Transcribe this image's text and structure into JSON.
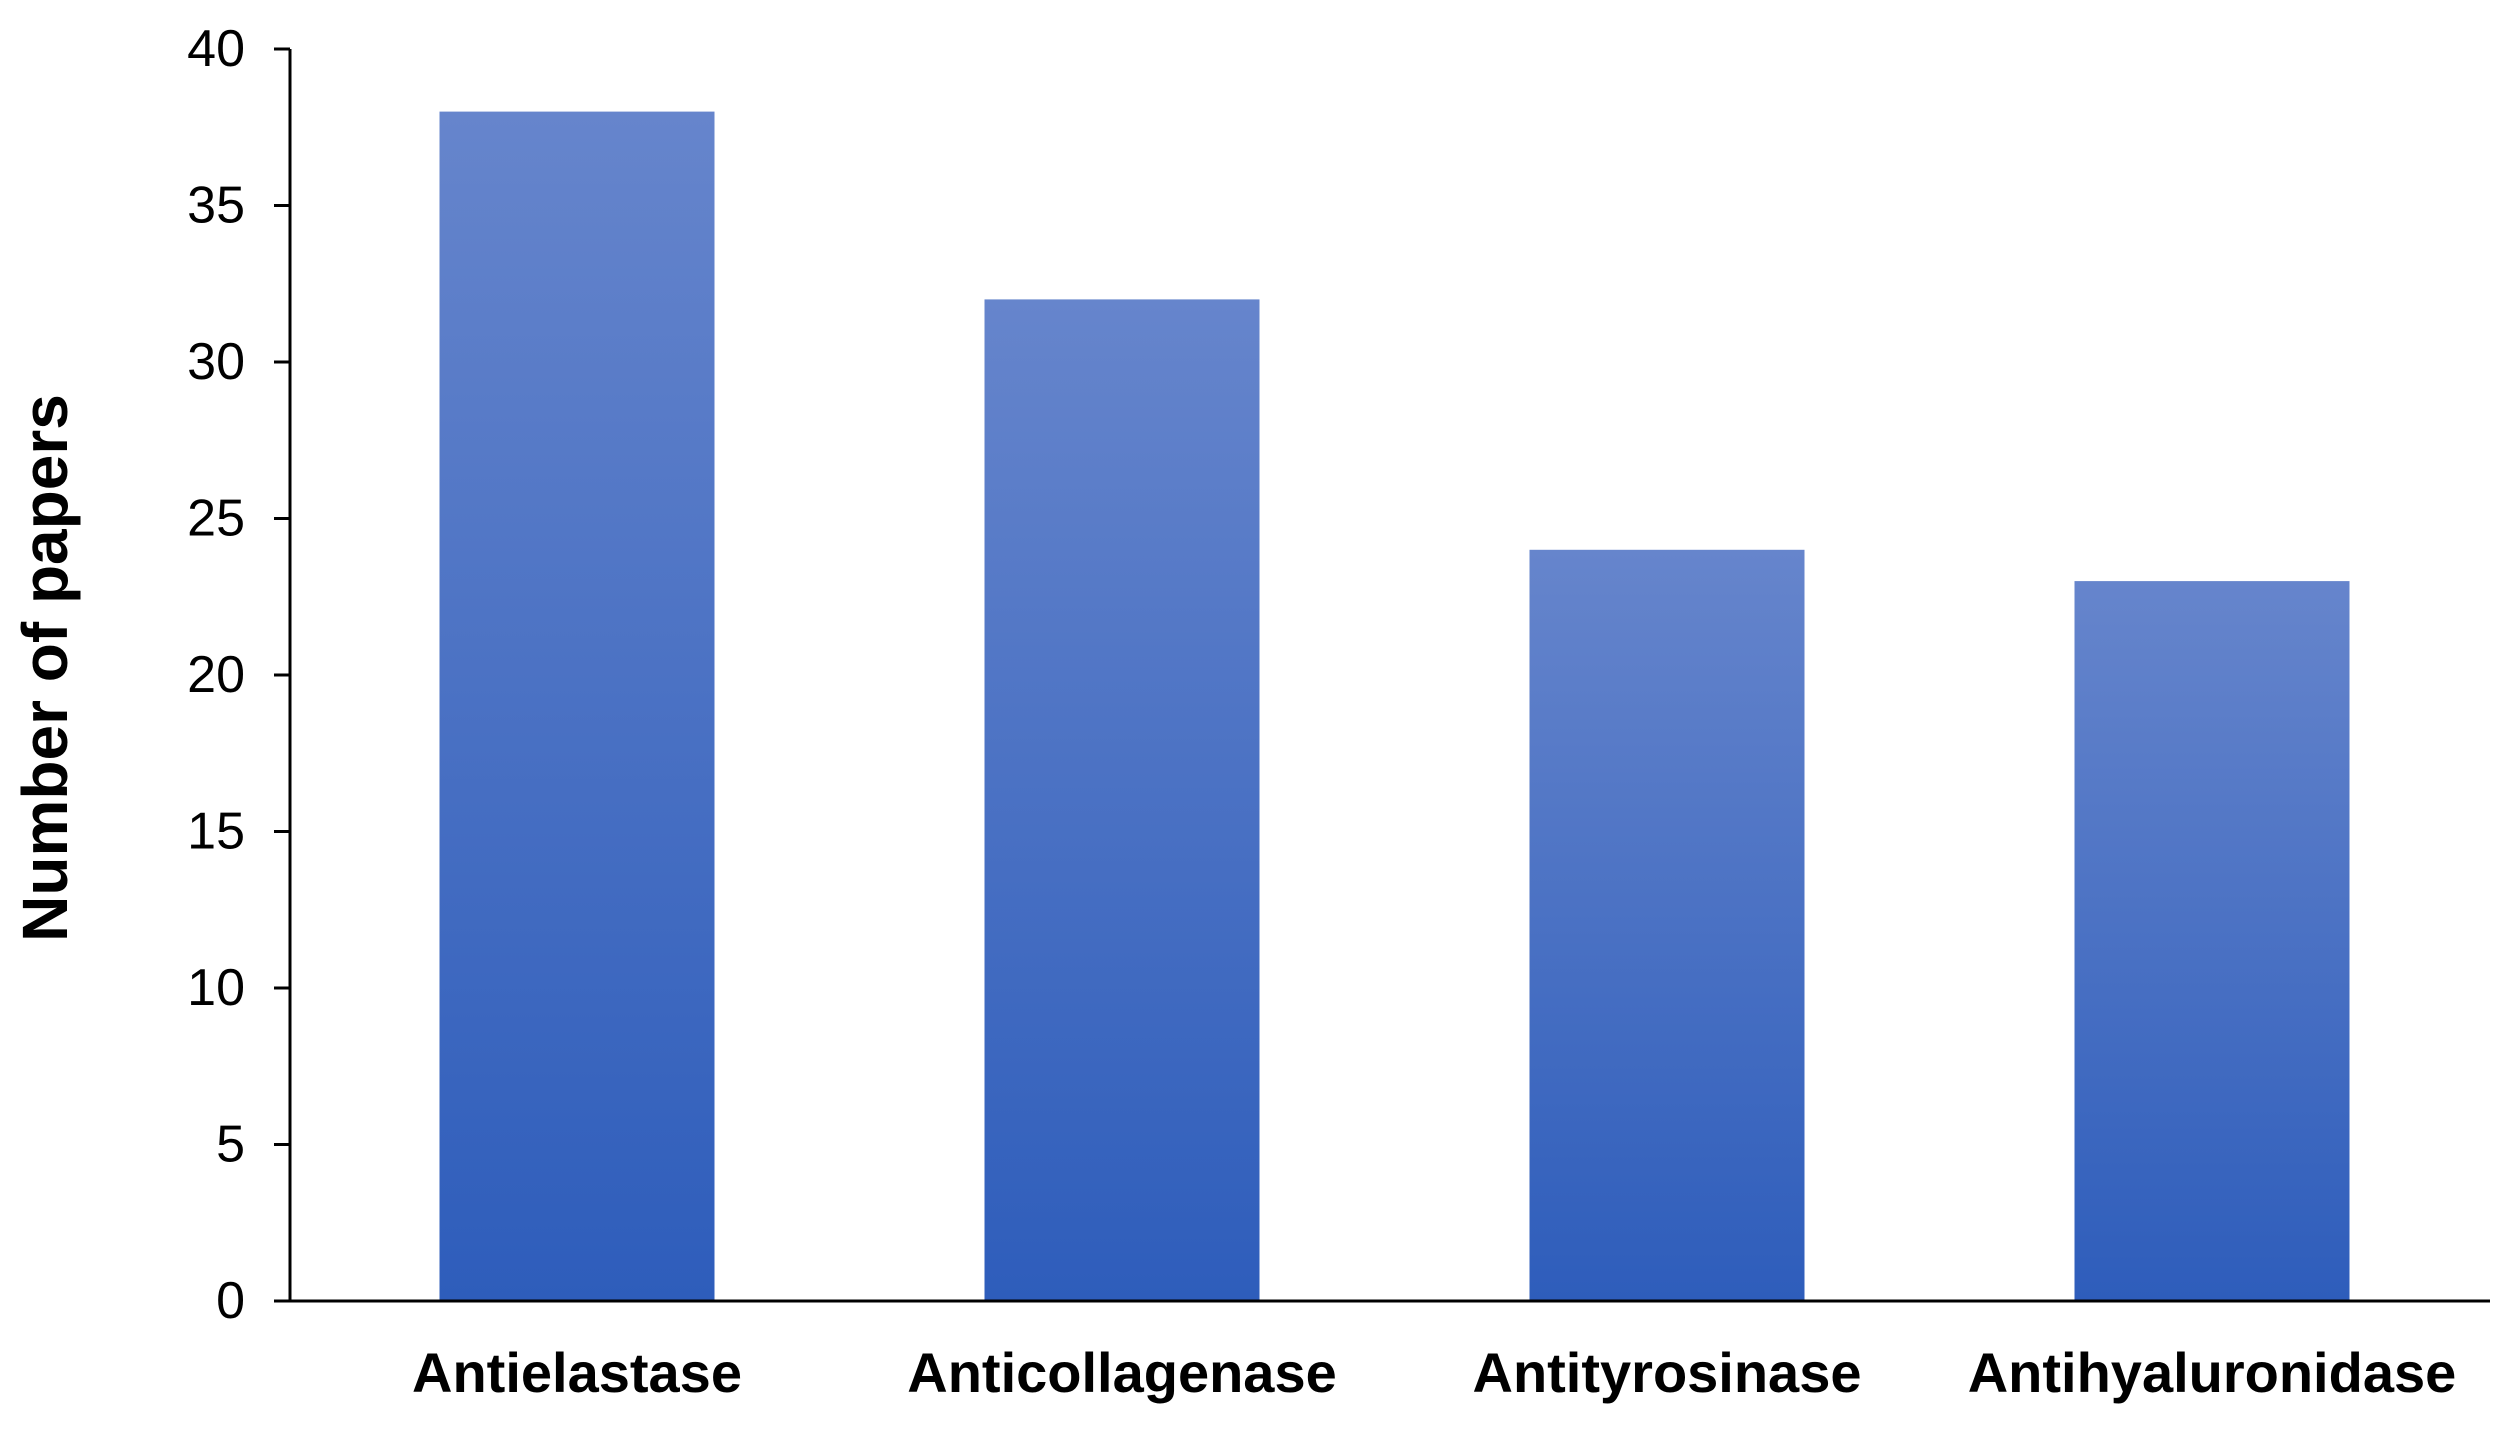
{
  "chart_data": {
    "type": "bar",
    "title": "",
    "xlabel": "",
    "ylabel": "Number of papers",
    "categories": [
      "Antielastase",
      "Anticollagenase",
      "Antityrosinase",
      "Antihyaluronidase"
    ],
    "values": [
      38,
      32,
      24,
      23
    ],
    "ylim": [
      0,
      40
    ],
    "yticks": [
      0,
      5,
      10,
      15,
      20,
      25,
      30,
      35,
      40
    ],
    "grid": false,
    "legend": "none",
    "bar_color_top": "#6685CC",
    "bar_color_bottom": "#2E5DBB",
    "axis_color": "#000000"
  }
}
